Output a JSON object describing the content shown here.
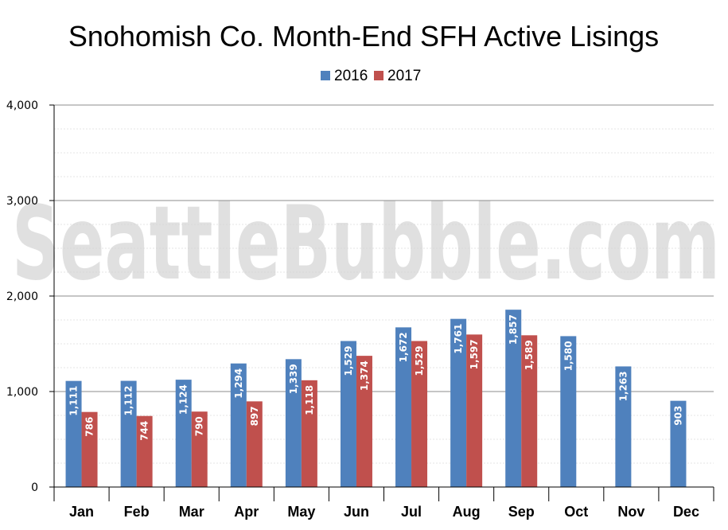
{
  "chart_data": {
    "type": "bar",
    "title": "Snohomish Co. Month-End SFH Active Lisings",
    "categories": [
      "Jan",
      "Feb",
      "Mar",
      "Apr",
      "May",
      "Jun",
      "Jul",
      "Aug",
      "Sep",
      "Oct",
      "Nov",
      "Dec"
    ],
    "series": [
      {
        "name": "2016",
        "color": "#4f81bd",
        "values": [
          1111,
          1112,
          1124,
          1294,
          1339,
          1529,
          1672,
          1761,
          1857,
          1580,
          1263,
          903
        ]
      },
      {
        "name": "2017",
        "color": "#c0504d",
        "values": [
          786,
          744,
          790,
          897,
          1118,
          1374,
          1529,
          1597,
          1589,
          null,
          null,
          null
        ]
      }
    ],
    "ylim": [
      0,
      4000
    ],
    "yticks": [
      0,
      1000,
      2000,
      3000,
      4000
    ],
    "ytick_labels": [
      "0",
      "1,000",
      "2,000",
      "3,000",
      "4,000"
    ],
    "legend": "top-center",
    "grid": true,
    "xlabel": "",
    "ylabel": ""
  },
  "watermark": "SeattleBubble.com"
}
